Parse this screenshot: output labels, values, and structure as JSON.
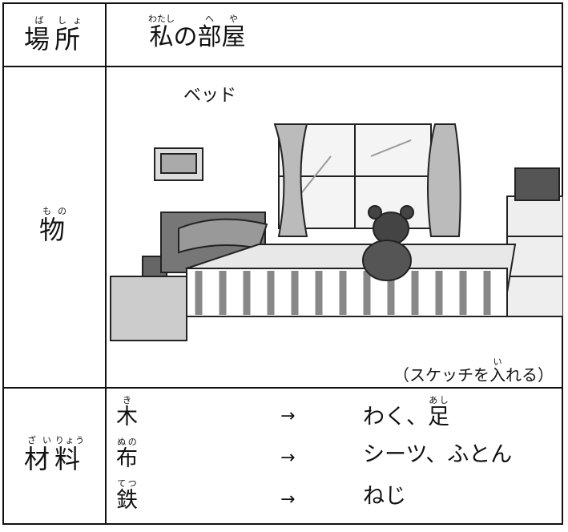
{
  "rows": [
    {
      "label": [
        {
          "base": "場",
          "ruby": "ば"
        },
        {
          "base": "所",
          "ruby": "しょ"
        }
      ],
      "value": [
        {
          "base": "私",
          "ruby": "わたし"
        },
        {
          "base": "の"
        },
        {
          "base": "部",
          "ruby": "へ"
        },
        {
          "base": "屋",
          "ruby": "や"
        }
      ]
    },
    {
      "label": [
        {
          "base": "物",
          "ruby": "もの"
        }
      ],
      "caption": "ベッド",
      "note": [
        {
          "base": "（スケッチを"
        },
        {
          "base": "入",
          "ruby": "い"
        },
        {
          "base": "れる）"
        }
      ]
    },
    {
      "label": [
        {
          "base": "材",
          "ruby": "ざい"
        },
        {
          "base": "料",
          "ruby": "りょう"
        }
      ],
      "items": [
        {
          "material": [
            {
              "base": "木",
              "ruby": "き"
            }
          ],
          "arrow": "→",
          "uses": [
            {
              "base": "わく、"
            },
            {
              "base": "足",
              "ruby": "あし"
            }
          ]
        },
        {
          "material": [
            {
              "base": "布",
              "ruby": "ぬの"
            }
          ],
          "arrow": "→",
          "uses": [
            {
              "base": "シーツ、ふとん"
            }
          ]
        },
        {
          "material": [
            {
              "base": "鉄",
              "ruby": "てつ"
            }
          ],
          "arrow": "→",
          "uses": [
            {
              "base": "ねじ"
            }
          ]
        }
      ]
    }
  ]
}
